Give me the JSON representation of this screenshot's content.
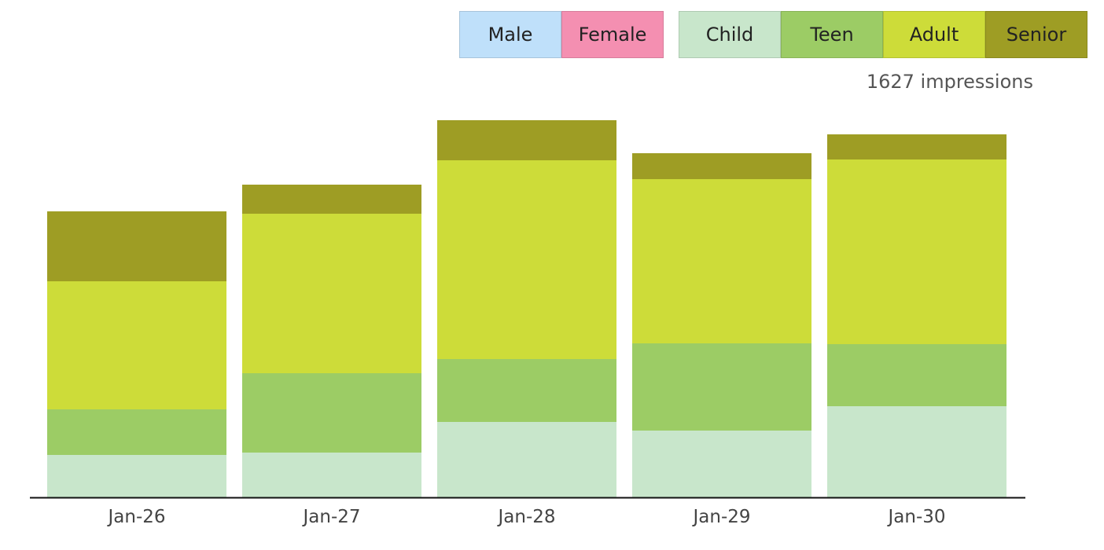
{
  "legend": {
    "gender": [
      {
        "label": "Male",
        "color": "#bfe0fa"
      },
      {
        "label": "Female",
        "color": "#f48fb1"
      }
    ],
    "age": [
      {
        "label": "Child",
        "color": "#c8e6cb"
      },
      {
        "label": "Teen",
        "color": "#9ccc65"
      },
      {
        "label": "Adult",
        "color": "#cddc39"
      },
      {
        "label": "Senior",
        "color": "#9e9d24"
      }
    ]
  },
  "impressions_text": "1627 impressions",
  "chart_data": {
    "type": "bar",
    "stacked": true,
    "categories": [
      "Jan-26",
      "Jan-27",
      "Jan-28",
      "Jan-29",
      "Jan-30"
    ],
    "series": [
      {
        "name": "Child",
        "color": "#c8e6cb",
        "values": [
          54,
          57,
          96,
          85,
          116
        ]
      },
      {
        "name": "Teen",
        "color": "#9ccc65",
        "values": [
          58,
          101,
          80,
          111,
          79
        ]
      },
      {
        "name": "Adult",
        "color": "#cddc39",
        "values": [
          163,
          203,
          253,
          209,
          235
        ]
      },
      {
        "name": "Senior",
        "color": "#9e9d24",
        "values": [
          89,
          37,
          51,
          33,
          32
        ]
      }
    ],
    "ylim": [
      0,
      480
    ],
    "xlabel": "",
    "ylabel": ""
  }
}
